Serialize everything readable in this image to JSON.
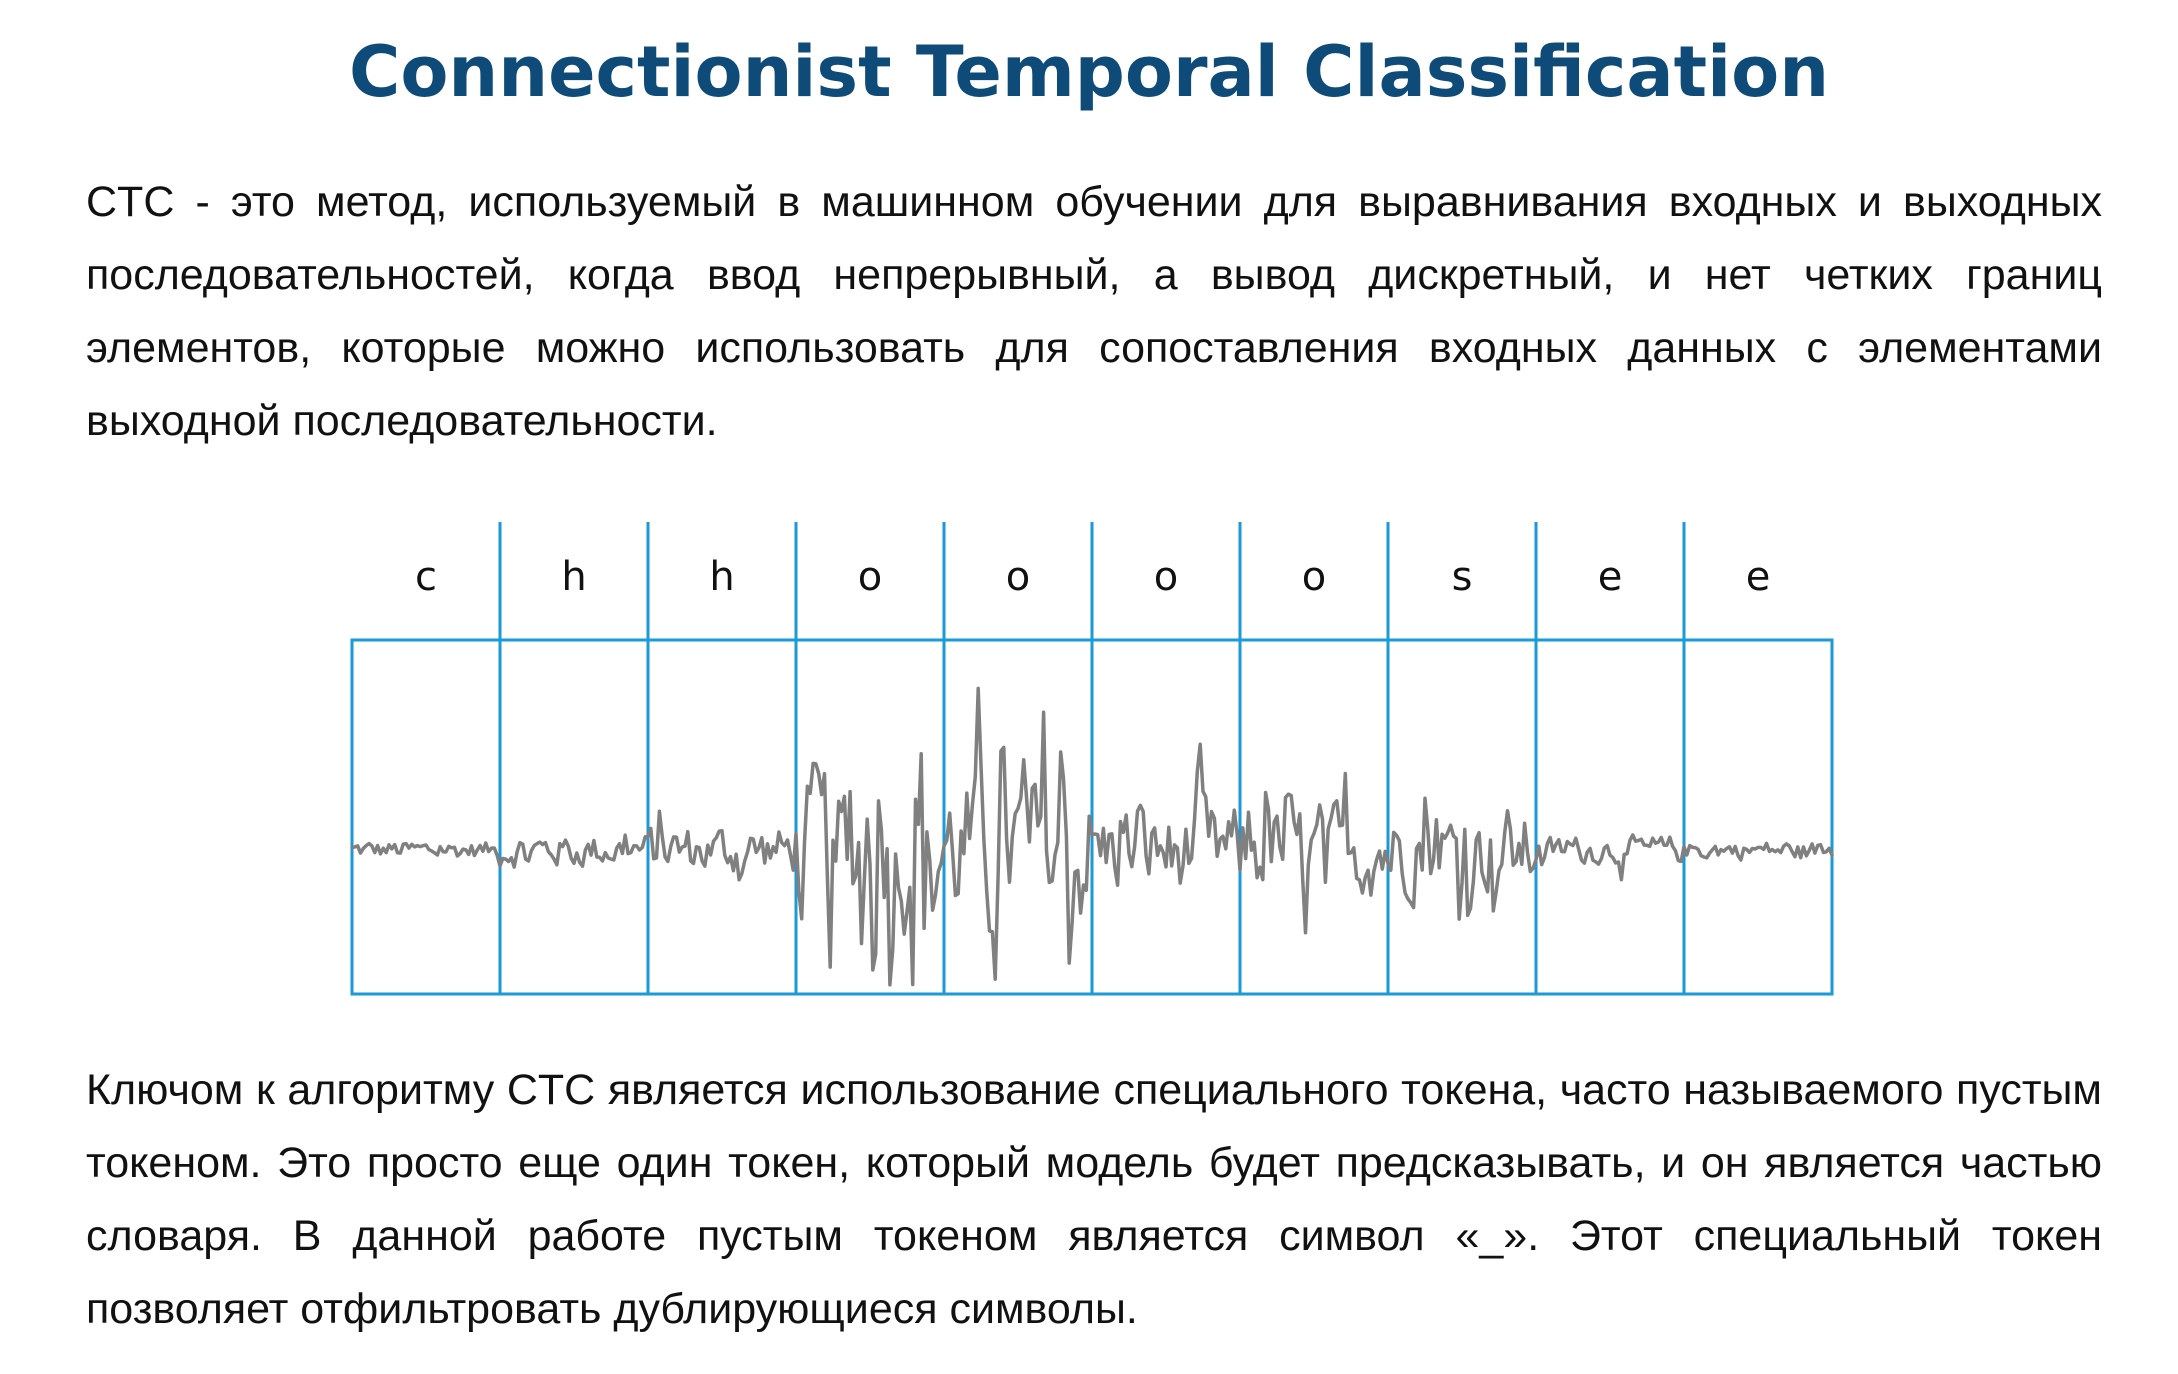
{
  "title": "Connectionist Temporal Classification",
  "paragraph1": "CTC - это метод, используемый в машинном обучении для выравнивания входных и выходных последовательностей, когда ввод непрерывный, а вывод дискретный, и нет четких границ элементов, которые можно использовать для сопоставления входных данных с элементами выходной последовательности.",
  "figure": {
    "letters": [
      "c",
      "h",
      "h",
      "o",
      "o",
      "o",
      "o",
      "s",
      "e",
      "e"
    ],
    "colors": {
      "box": "#1a9ad6",
      "waveform": "#808080"
    }
  },
  "paragraph2": "Ключом к алгоритму CTC является использование специального токена, часто называемого пустым токеном. Это просто еще один токен, который модель будет предсказывать, и он является частью словаря. В данной работе пустым токеном является символ «_». Этот специальный токен позволяет отфильтровать дублирующиеся символы."
}
